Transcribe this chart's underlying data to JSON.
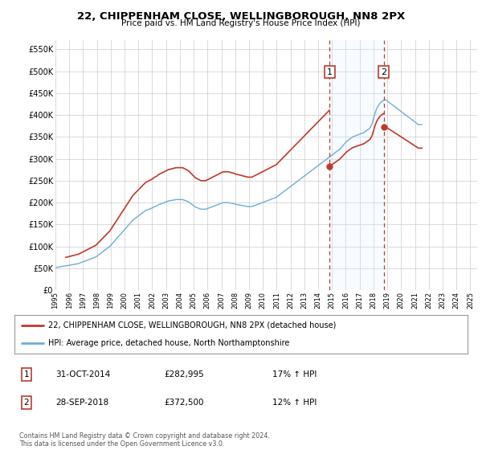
{
  "title": "22, CHIPPENHAM CLOSE, WELLINGBOROUGH, NN8 2PX",
  "subtitle": "Price paid vs. HM Land Registry's House Price Index (HPI)",
  "hpi_color": "#6baed6",
  "price_color": "#c0392b",
  "shade_color": "#ddeeff",
  "grid_color": "#cccccc",
  "label_price": "22, CHIPPENHAM CLOSE, WELLINGBOROUGH, NN8 2PX (detached house)",
  "label_hpi": "HPI: Average price, detached house, North Northamptonshire",
  "sale1_year": 2014.83,
  "sale1_price": 282995,
  "sale2_year": 2018.75,
  "sale2_price": 372500,
  "first_year": 1995.75,
  "first_price": 75000,
  "ylim": [
    0,
    570000
  ],
  "xlim": [
    1995,
    2025.5
  ],
  "yticks": [
    0,
    50000,
    100000,
    150000,
    200000,
    250000,
    300000,
    350000,
    400000,
    450000,
    500000,
    550000
  ],
  "xticks": [
    1995,
    1996,
    1997,
    1998,
    1999,
    2000,
    2001,
    2002,
    2003,
    2004,
    2005,
    2006,
    2007,
    2008,
    2009,
    2010,
    2011,
    2012,
    2013,
    2014,
    2015,
    2016,
    2017,
    2018,
    2019,
    2020,
    2021,
    2022,
    2023,
    2024,
    2025
  ],
  "table_data": [
    [
      "1",
      "31-OCT-2014",
      "£282,995",
      "17% ↑ HPI"
    ],
    [
      "2",
      "28-SEP-2018",
      "£372,500",
      "12% ↑ HPI"
    ]
  ],
  "footer": "Contains HM Land Registry data © Crown copyright and database right 2024.\nThis data is licensed under the Open Government Licence v3.0.",
  "background_color": "#ffffff",
  "hpi_monthly": [
    51000,
    52000,
    52500,
    53000,
    53500,
    54000,
    54500,
    55000,
    55200,
    55500,
    56000,
    56500,
    57000,
    57500,
    58000,
    58500,
    59000,
    59500,
    60000,
    60500,
    61000,
    62000,
    63000,
    64000,
    65000,
    66000,
    67000,
    68000,
    69000,
    70000,
    71000,
    72000,
    73000,
    74000,
    75000,
    76000,
    78000,
    80000,
    82000,
    84000,
    86000,
    88000,
    90000,
    92000,
    94000,
    96000,
    98000,
    100000,
    103000,
    106000,
    109000,
    112000,
    115000,
    118000,
    121000,
    124000,
    127000,
    130000,
    133000,
    136000,
    139000,
    142000,
    145000,
    148000,
    151000,
    154000,
    157000,
    160000,
    162000,
    164000,
    166000,
    168000,
    170000,
    172000,
    174000,
    176000,
    178000,
    180000,
    182000,
    183000,
    184000,
    185000,
    186000,
    187000,
    188000,
    190000,
    191000,
    192000,
    193000,
    195000,
    196000,
    197000,
    198000,
    199000,
    200000,
    201000,
    202000,
    203000,
    204000,
    204000,
    205000,
    205000,
    206000,
    206000,
    207000,
    207000,
    207000,
    207000,
    207000,
    207000,
    207000,
    206000,
    205000,
    204000,
    203000,
    202000,
    200000,
    198000,
    196000,
    194000,
    192000,
    190000,
    189000,
    188000,
    187000,
    186000,
    185000,
    185000,
    185000,
    185000,
    185000,
    186000,
    187000,
    188000,
    189000,
    190000,
    191000,
    192000,
    193000,
    194000,
    195000,
    196000,
    197000,
    198000,
    199000,
    200000,
    200000,
    200000,
    200000,
    200000,
    200000,
    199000,
    199000,
    198000,
    198000,
    197000,
    196000,
    196000,
    195000,
    195000,
    194000,
    194000,
    193000,
    193000,
    192000,
    192000,
    191000,
    191000,
    191000,
    191000,
    191000,
    192000,
    193000,
    194000,
    195000,
    196000,
    197000,
    198000,
    199000,
    200000,
    201000,
    202000,
    203000,
    204000,
    205000,
    206000,
    207000,
    208000,
    209000,
    210000,
    211000,
    212000,
    214000,
    216000,
    218000,
    220000,
    222000,
    224000,
    226000,
    228000,
    230000,
    232000,
    234000,
    236000,
    238000,
    240000,
    242000,
    244000,
    246000,
    248000,
    250000,
    252000,
    254000,
    256000,
    258000,
    260000,
    262000,
    264000,
    266000,
    268000,
    270000,
    272000,
    274000,
    276000,
    278000,
    280000,
    282000,
    284000,
    286000,
    288000,
    290000,
    292000,
    294000,
    296000,
    298000,
    300000,
    302000,
    304000,
    306000,
    308000,
    310000,
    312000,
    314000,
    316000,
    318000,
    320000,
    322000,
    325000,
    328000,
    331000,
    334000,
    337000,
    340000,
    342000,
    344000,
    346000,
    348000,
    350000,
    351000,
    352000,
    353000,
    354000,
    355000,
    356000,
    357000,
    358000,
    359000,
    360000,
    362000,
    364000,
    366000,
    368000,
    370000,
    375000,
    380000,
    390000,
    400000,
    408000,
    415000,
    420000,
    424000,
    428000,
    430000,
    432000,
    434000,
    435000,
    434000,
    432000,
    430000,
    428000,
    426000,
    424000,
    422000,
    420000,
    418000,
    416000,
    414000,
    412000,
    410000,
    408000,
    406000,
    404000,
    402000,
    400000,
    398000,
    396000,
    394000,
    392000,
    390000,
    388000,
    386000,
    384000,
    382000,
    380000,
    378000,
    378000,
    378000,
    378000
  ]
}
